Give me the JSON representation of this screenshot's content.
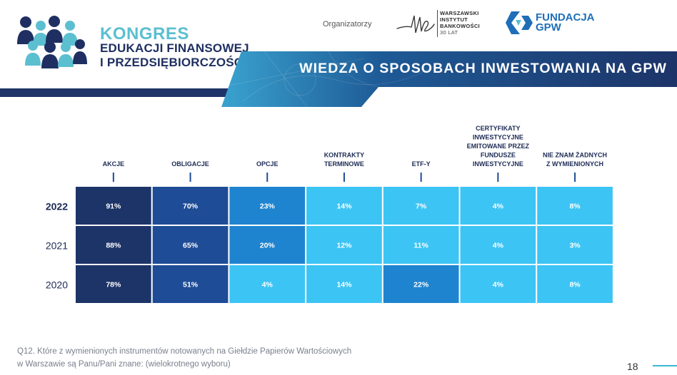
{
  "event": {
    "title": "KONGRES",
    "line1": "EDUKACJI FINANSOWEJ",
    "line2": "I PRZEDSIĘBIORCZOŚCI"
  },
  "organizers": {
    "label": "Organizatorzy",
    "wib_lines": [
      "WARSZAWSKI",
      "INSTYTUT",
      "BANKOWOŚCI",
      "30 LAT"
    ],
    "gpw_lines": [
      "FUNDACJA",
      "GPW"
    ]
  },
  "slide_title": "WIEDZA O SPOSOBACH INWESTOWANIA NA GPW",
  "question": {
    "line1": "Q12. Które z wymienionych instrumentów notowanych na Giełdzie Papierów Wartościowych",
    "line2": "w Warszawie są Panu/Pani znane:  (wielokrotnego wyboru)"
  },
  "page_number": "18",
  "colors": {
    "dark_navy": "#1d3468",
    "navy": "#1e4c96",
    "blue": "#1f84cf",
    "light_blue": "#3cc4f4",
    "header_band": "#1f3468",
    "accent": "#39b6d6"
  },
  "chart_data": {
    "type": "heatmap",
    "columns": [
      [
        "AKCJE"
      ],
      [
        "OBLIGACJE"
      ],
      [
        "OPCJE"
      ],
      [
        "KONTRAKTY",
        "TERMINOWE"
      ],
      [
        "ETF-Y"
      ],
      [
        "CERTYFIKATY",
        "INWESTYCYJNE",
        "EMITOWANE PRZEZ",
        "FUNDUSZE",
        "INWESTYCYJNE"
      ],
      [
        "NIE ZNAM ŻADNYCH",
        "Z WYMIENIONYCH"
      ]
    ],
    "rows": [
      "2022",
      "2021",
      "2020"
    ],
    "values": [
      [
        91,
        70,
        23,
        14,
        7,
        4,
        8
      ],
      [
        88,
        65,
        20,
        12,
        11,
        4,
        3
      ],
      [
        78,
        51,
        4,
        14,
        22,
        4,
        8
      ]
    ],
    "unit": "%"
  }
}
